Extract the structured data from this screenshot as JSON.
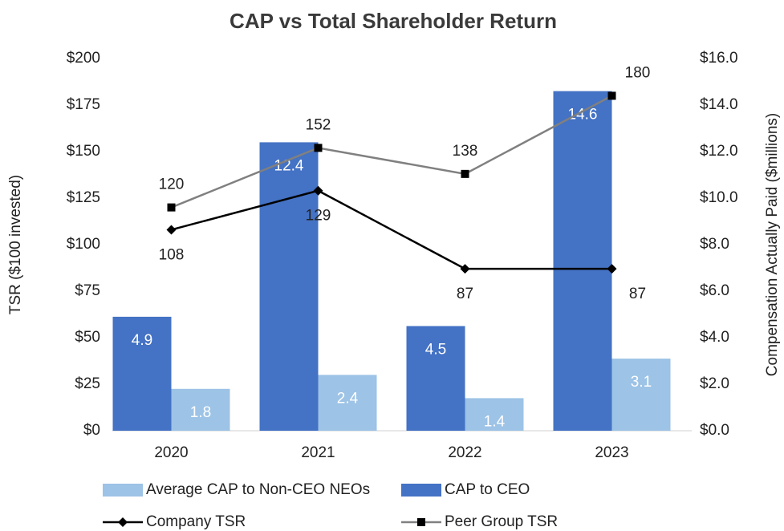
{
  "chart_data": {
    "type": "bar",
    "title": "CAP vs Total Shareholder Return",
    "y_label": "TSR ($100 invested)",
    "y2_label": "Compensation Actually Paid ($millions)",
    "categories": [
      "2020",
      "2021",
      "2022",
      "2023"
    ],
    "series": [
      {
        "name": "Average CAP to Non-CEO NEOs",
        "type": "bar",
        "axis": "y2",
        "color": "#9dc3e6",
        "values": [
          1.8,
          2.4,
          1.4,
          3.1
        ]
      },
      {
        "name": "CAP to CEO",
        "type": "bar",
        "axis": "y2",
        "color": "#4472c4",
        "values": [
          4.9,
          12.4,
          4.5,
          14.6
        ]
      },
      {
        "name": "Company TSR",
        "type": "line",
        "marker": "diamond",
        "color": "#000000",
        "values": [
          108,
          129,
          87,
          87
        ]
      },
      {
        "name": "Peer Group TSR",
        "type": "line",
        "marker": "square",
        "color": "#808080",
        "values": [
          120,
          152,
          138,
          180
        ]
      }
    ],
    "ylim": [
      0,
      200
    ],
    "yticks": [
      {
        "value": 0,
        "label": "$0"
      },
      {
        "value": 25,
        "label": "$25"
      },
      {
        "value": 50,
        "label": "$50"
      },
      {
        "value": 75,
        "label": "$75"
      },
      {
        "value": 100,
        "label": "$100"
      },
      {
        "value": 125,
        "label": "$125"
      },
      {
        "value": 150,
        "label": "$150"
      },
      {
        "value": 175,
        "label": "$175"
      },
      {
        "value": 200,
        "label": "$200"
      }
    ],
    "y2lim": [
      0,
      16
    ],
    "y2ticks": [
      {
        "value": 0,
        "label": "$0.0"
      },
      {
        "value": 2,
        "label": "$2.0"
      },
      {
        "value": 4,
        "label": "$4.0"
      },
      {
        "value": 6,
        "label": "$6.0"
      },
      {
        "value": 8,
        "label": "$8.0"
      },
      {
        "value": 10,
        "label": "$10.0"
      },
      {
        "value": 12,
        "label": "$12.0"
      },
      {
        "value": 14,
        "label": "$14.0"
      },
      {
        "value": 16,
        "label": "$16.0"
      }
    ]
  }
}
